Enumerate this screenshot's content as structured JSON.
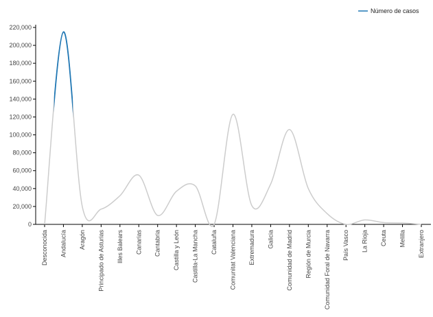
{
  "chart_data": {
    "type": "line",
    "categories": [
      "Desconocida",
      "Andalucía",
      "Aragón",
      "Principado de Asturias",
      "Illes Balears",
      "Canarias",
      "Cantabria",
      "Castilla y León",
      "Castilla-La Mancha",
      "Cataluña",
      "Comunitat Valenciana",
      "Extremadura",
      "Galicia",
      "Comunidad de Madrid",
      "Región de Murcia",
      "Comunidad Foral de Navarra",
      "País Vasco",
      "La Rioja",
      "Ceuta",
      "Melilla",
      "Extranjero"
    ],
    "series": [
      {
        "name": "Número de casos",
        "values": [
          0,
          215000,
          20000,
          17000,
          32000,
          55000,
          10000,
          37000,
          43000,
          0,
          123000,
          21000,
          45000,
          106000,
          40000,
          12000,
          0,
          5000,
          2000,
          1500,
          0
        ]
      }
    ],
    "yticks": [
      "0",
      "20,000",
      "40,000",
      "60,000",
      "80,000",
      "100,000",
      "120,000",
      "140,000",
      "160,000",
      "180,000",
      "200,000",
      "220,000"
    ],
    "ylim": [
      0,
      220000
    ],
    "highlight_index": 1,
    "legend_position": "top-right",
    "colors": {
      "highlight": "#1f77b4",
      "line": "#cccccc",
      "axis": "#000000",
      "text": "#444444"
    }
  }
}
